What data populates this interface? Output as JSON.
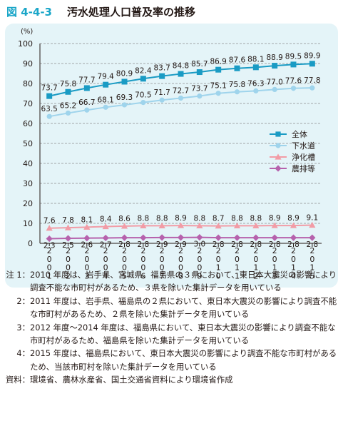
{
  "figure": {
    "number": "図 4-4-3",
    "title": "汚水処理人口普及率の推移"
  },
  "chart_data": {
    "type": "line",
    "ylabel": "(%)",
    "ylim": [
      0,
      100
    ],
    "yticks": [
      "0",
      "10",
      "20",
      "30",
      "40",
      "50",
      "60",
      "70",
      "80",
      "90",
      "100"
    ],
    "grid": "horizontal dashed",
    "legend_position": "right",
    "categories": [
      "2001",
      "2002",
      "2003",
      "2004",
      "2005",
      "2006",
      "2007",
      "2008",
      "2009",
      "2010",
      "2011",
      "2012",
      "2013",
      "2014",
      "2015"
    ],
    "series": [
      {
        "name": "全体",
        "color": "#1a9bc4",
        "marker": "square",
        "values": [
          73.7,
          75.8,
          77.7,
          79.4,
          80.9,
          82.4,
          83.7,
          84.8,
          85.7,
          86.9,
          87.6,
          88.1,
          88.9,
          89.5,
          89.9
        ],
        "labels": [
          "73.7",
          "75.8",
          "77.7",
          "79.4",
          "80.9",
          "82.4",
          "83.7",
          "84.8",
          "85.7",
          "86.9",
          "87.6",
          "88.1",
          "88.9",
          "89.5",
          "89.9"
        ]
      },
      {
        "name": "下水道",
        "color": "#9fd4ec",
        "marker": "circle",
        "values": [
          63.5,
          65.2,
          66.7,
          68.1,
          69.3,
          70.5,
          71.7,
          72.7,
          73.7,
          75.1,
          75.8,
          76.3,
          77.0,
          77.6,
          77.8
        ],
        "labels": [
          "63.5",
          "65.2",
          "66.7",
          "68.1",
          "69.3",
          "70.5",
          "71.7",
          "72.7",
          "73.7",
          "75.1",
          "75.8",
          "76.3",
          "77.0",
          "77.6",
          "77.8"
        ]
      },
      {
        "name": "浄化槽",
        "color": "#f29ca6",
        "marker": "triangle",
        "values": [
          7.6,
          7.8,
          8.1,
          8.4,
          8.6,
          8.8,
          8.8,
          8.9,
          8.8,
          8.7,
          8.8,
          8.8,
          8.9,
          8.9,
          9.1
        ],
        "labels": [
          "7.6",
          "7.8",
          "8.1",
          "8.4",
          "8.6",
          "8.8",
          "8.8",
          "8.9",
          "8.8",
          "8.7",
          "8.8",
          "8.8",
          "8.9",
          "8.9",
          "9.1"
        ]
      },
      {
        "name": "農排等",
        "color": "#b662ad",
        "marker": "diamond",
        "values": [
          2.3,
          2.5,
          2.6,
          2.7,
          2.8,
          2.8,
          2.9,
          2.9,
          3.0,
          2.8,
          2.8,
          2.8,
          2.8,
          2.8,
          2.8
        ],
        "labels": [
          "2.3",
          "2.5",
          "2.6",
          "2.7",
          "2.8",
          "2.8",
          "2.9",
          "2.9",
          "3.0",
          "2.8",
          "2.8",
          "2.8",
          "2.8",
          "2.8",
          "2.8"
        ]
      }
    ]
  },
  "notes": [
    {
      "label": "注 1：",
      "text": "2010 年度は、岩手県、宮城県、福島県の３県において、東日本大震災の影響により調査不能な市町村があるため、３県を除いた集計データを用いている"
    },
    {
      "label": "2：",
      "text": "2011 年度は、岩手県、福島県の２県において、東日本大震災の影響により調査不能な市町村があるため、２県を除いた集計データを用いている"
    },
    {
      "label": "3：",
      "text": "2012 年度～2014 年度は、福島県において、東日本大震災の影響により調査不能な市町村があるため、福島県を除いた集計データを用いている"
    },
    {
      "label": "4：",
      "text": "2015 年度は、福島県において、東日本大震災の影響により調査不能な市町村があるため、当該市町村を除いた集計データを用いている"
    }
  ],
  "source": {
    "label": "資料：",
    "text": "環境省、農林水産省、国土交通省資料により環境省作成"
  }
}
